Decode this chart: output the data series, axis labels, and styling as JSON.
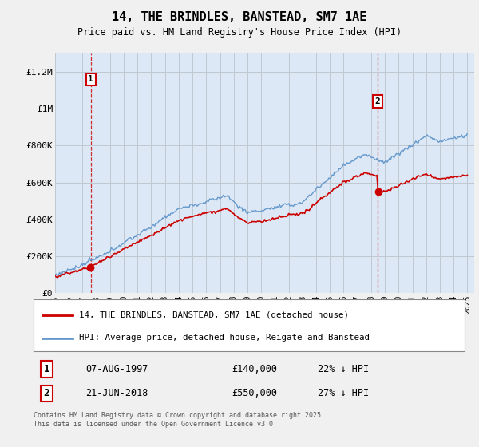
{
  "title": "14, THE BRINDLES, BANSTEAD, SM7 1AE",
  "subtitle": "Price paid vs. HM Land Registry's House Price Index (HPI)",
  "legend_label_red": "14, THE BRINDLES, BANSTEAD, SM7 1AE (detached house)",
  "legend_label_blue": "HPI: Average price, detached house, Reigate and Banstead",
  "annotation1_date": "07-AUG-1997",
  "annotation1_price": "£140,000",
  "annotation1_hpi": "22% ↓ HPI",
  "annotation1_year": 1997.6,
  "annotation1_value": 140000,
  "annotation2_date": "21-JUN-2018",
  "annotation2_price": "£550,000",
  "annotation2_hpi": "27% ↓ HPI",
  "annotation2_year": 2018.47,
  "annotation2_value": 550000,
  "ylabel_values": [
    "£0",
    "£200K",
    "£400K",
    "£600K",
    "£800K",
    "£1M",
    "£1.2M"
  ],
  "yticks": [
    0,
    200000,
    400000,
    600000,
    800000,
    1000000,
    1200000
  ],
  "ylim": [
    0,
    1300000
  ],
  "xlim_start": 1995,
  "xlim_end": 2025.5,
  "footer_line1": "Contains HM Land Registry data © Crown copyright and database right 2025.",
  "footer_line2": "This data is licensed under the Open Government Licence v3.0.",
  "background_color": "#f0f0f0",
  "plot_background": "#dce8f5",
  "red_color": "#cc0000",
  "blue_color": "#6699cc",
  "grid_color": "#c0c8d0"
}
